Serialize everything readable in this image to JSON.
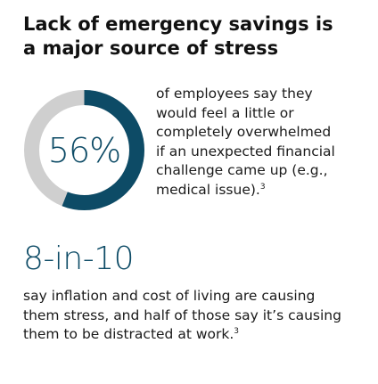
{
  "title": {
    "line1": "Lack of emergency savings is",
    "line2": "a major source of stress"
  },
  "stat1": {
    "value_text": "56%",
    "fraction": 0.56,
    "ring_color": "#0d4b66",
    "track_color": "#cfcfcf",
    "description_lines": [
      "of employees say they",
      "would feel a little or",
      "completely overwhelmed",
      "if an unexpected financial",
      "challenge came up (e.g.,",
      "medical issue)."
    ],
    "footnote": "3"
  },
  "stat2": {
    "value_text": "8-in-10",
    "description_lines": [
      "say inflation and cost of living are causing",
      "them stress, and half of those say it’s causing",
      "them to be distracted at work."
    ],
    "footnote": "3"
  }
}
